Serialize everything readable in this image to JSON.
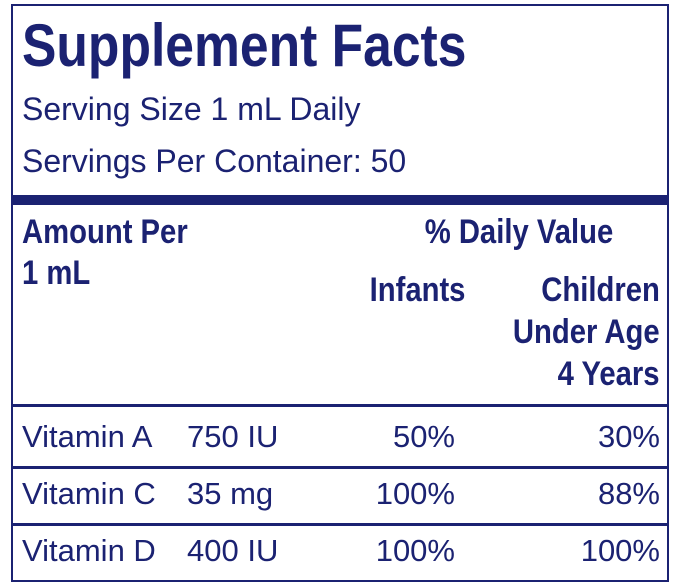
{
  "header": {
    "title": "Supplement Facts",
    "serving_size": "Serving Size 1 mL Daily",
    "servings_per_container": "Servings Per Container: 50"
  },
  "table": {
    "columns": {
      "amount": [
        "Amount Per",
        "1 mL"
      ],
      "daily_value": "% Daily Value",
      "infants": "Infants",
      "children": [
        "Children",
        "Under Age",
        "4 Years"
      ]
    },
    "rows": [
      [
        "Vitamin A",
        "750 IU",
        "50%",
        "30%"
      ],
      [
        "Vitamin C",
        "35 mg",
        "100%",
        "88%"
      ],
      [
        "Vitamin D",
        "400 IU",
        "100%",
        "100%"
      ]
    ]
  }
}
